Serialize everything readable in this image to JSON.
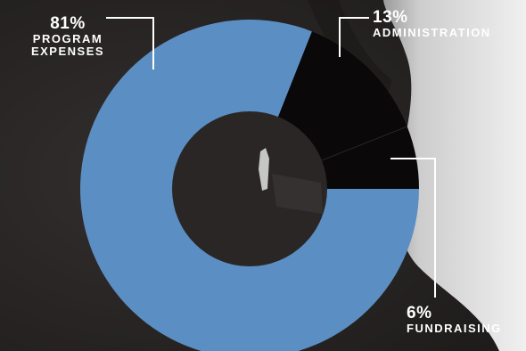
{
  "chart_data": {
    "type": "pie",
    "donut": true,
    "title": "",
    "categories": [
      "PROGRAM EXPENSES",
      "ADMINISTRATION",
      "FUNDRAISING"
    ],
    "values": [
      81,
      13,
      6
    ],
    "value_labels": [
      "81%",
      "13%",
      "6%"
    ],
    "colors": [
      "#5b8fc3",
      "#0a0808",
      "#0a0808"
    ],
    "legend": "none"
  },
  "colors": {
    "background_dark": "#2a2727",
    "background_light": "#cfcfcf",
    "slice_divider": "#2a2a2a",
    "text": "#ffffff"
  }
}
